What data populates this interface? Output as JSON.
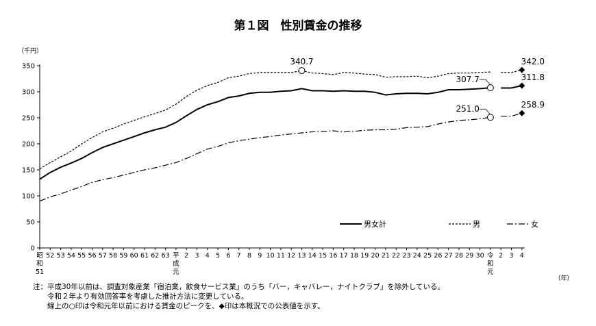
{
  "chart_data": {
    "type": "line",
    "title": "第１図　性別賃金の推移",
    "ylabel": "（千円）",
    "xlabel": "（年）",
    "ylim": [
      0,
      350
    ],
    "yticks": [
      0,
      50,
      100,
      150,
      200,
      250,
      300,
      350
    ],
    "x_tick_labels": [
      "昭和51",
      "52",
      "53",
      "54",
      "55",
      "56",
      "57",
      "58",
      "59",
      "60",
      "61",
      "62",
      "63",
      "平成元",
      "2",
      "3",
      "4",
      "5",
      "6",
      "7",
      "8",
      "9",
      "10",
      "11",
      "12",
      "13",
      "14",
      "15",
      "16",
      "17",
      "18",
      "19",
      "20",
      "21",
      "22",
      "23",
      "24",
      "25",
      "26",
      "27",
      "28",
      "29",
      "30",
      "令和元",
      "2",
      "3",
      "4"
    ],
    "legend_position": "bottom-right",
    "series": [
      {
        "name": "男女計",
        "style": "solid",
        "color": "#000000",
        "values": [
          132,
          145,
          155,
          163,
          172,
          183,
          193,
          200,
          207,
          214,
          221,
          227,
          232,
          241,
          254,
          266,
          275,
          281,
          289,
          292,
          297,
          299,
          299,
          301,
          302,
          306,
          302,
          302,
          301,
          302,
          301,
          301,
          299,
          294,
          296,
          297,
          297,
          296,
          299,
          304,
          304,
          305,
          306,
          307.7,
          null,
          null,
          null
        ],
        "recent": [
          307.7,
          307.3,
          311.8
        ]
      },
      {
        "name": "男",
        "style": "dashed",
        "color": "#000000",
        "values": [
          152,
          164,
          175,
          186,
          200,
          212,
          223,
          230,
          238,
          245,
          252,
          258,
          265,
          276,
          291,
          303,
          312,
          318,
          327,
          330,
          335,
          337,
          337,
          337,
          337,
          340.7,
          336,
          335,
          333,
          337,
          336,
          334,
          333,
          328,
          329,
          329,
          330,
          327,
          330,
          335,
          336,
          336,
          337,
          338.0,
          null,
          null,
          null
        ],
        "recent": [
          338.0,
          337.0,
          342.0
        ]
      },
      {
        "name": "女",
        "style": "dashdot",
        "color": "#000000",
        "values": [
          90,
          98,
          104,
          111,
          118,
          126,
          131,
          135,
          140,
          145,
          150,
          154,
          159,
          164,
          172,
          181,
          190,
          195,
          202,
          206,
          209,
          212,
          214,
          217,
          219,
          221,
          223,
          224,
          225,
          223,
          224,
          226,
          227,
          227,
          228,
          231,
          232,
          233,
          238,
          242,
          245,
          246,
          248,
          251.0,
          null,
          null,
          null
        ],
        "recent": [
          251.0,
          253.0,
          258.9
        ]
      }
    ],
    "annotations": [
      {
        "text": "340.7",
        "series": "男",
        "x_label": "13",
        "marker": "circle"
      },
      {
        "text": "307.7",
        "series": "男女計",
        "x_label": "令和元",
        "marker": "circle"
      },
      {
        "text": "251.0",
        "series": "女",
        "x_label": "令和元",
        "marker": "circle"
      },
      {
        "text": "342.0",
        "series": "男",
        "x_label": "4",
        "marker": "diamond"
      },
      {
        "text": "311.8",
        "series": "男女計",
        "x_label": "4",
        "marker": "diamond"
      },
      {
        "text": "258.9",
        "series": "女",
        "x_label": "4",
        "marker": "diamond"
      }
    ]
  },
  "notes": [
    "注：平成30年以前は、調査対象産業「宿泊業，飲食サービス業」のうち「バー，キャバレー，ナイトクラブ」を除外している。",
    "　　令和２年より有効回答率を考慮した推計方法に変更している。",
    "　　線上の○印は令和元年以前における賃金のピークを、◆印は本概況での公表値を示す。"
  ]
}
